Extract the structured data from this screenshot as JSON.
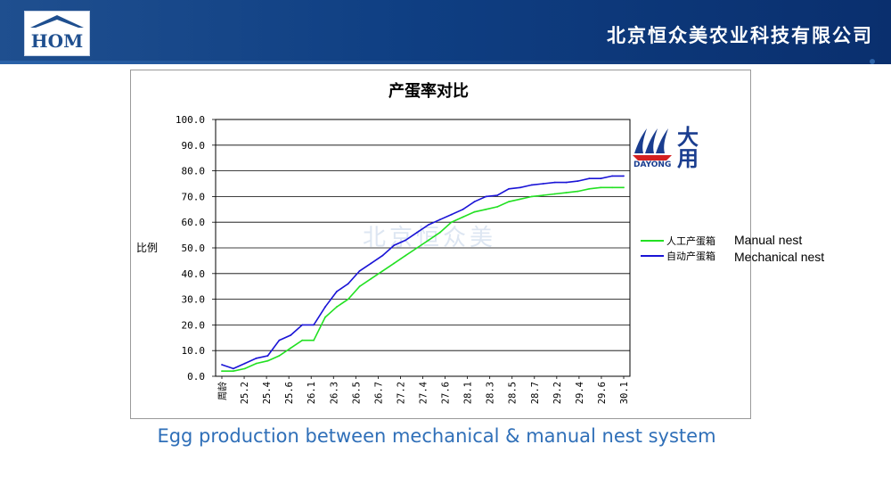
{
  "header": {
    "logo_text": "HOM",
    "company_name": "北京恒众美农业科技有限公司"
  },
  "watermark": "北京恒众美",
  "partner_logo": {
    "name_en": "DAYONG",
    "name_cn": "大用"
  },
  "legend_english": [
    "Manual nest",
    "Mechanical nest"
  ],
  "caption": "Egg production between mechanical & manual nest system",
  "colors": {
    "header": "#0f3f83",
    "manual": "#22e022",
    "mechanical": "#1a14d6",
    "caption": "#2f6fb8"
  },
  "chart_data": {
    "type": "line",
    "title": "产蛋率对比",
    "ylabel": "比例",
    "xlabel": "",
    "ylim": [
      0,
      100
    ],
    "yticks": [
      "100.0",
      "90.0",
      "80.0",
      "70.0",
      "60.0",
      "50.0",
      "40.0",
      "30.0",
      "20.0",
      "10.0",
      "0.0"
    ],
    "x_tick_labels": [
      "周龄",
      "25.2",
      "25.4",
      "25.6",
      "26.1",
      "26.3",
      "26.5",
      "26.7",
      "27.2",
      "27.4",
      "27.6",
      "28.1",
      "28.3",
      "28.5",
      "28.7",
      "29.2",
      "29.4",
      "29.6",
      "30.1"
    ],
    "grid": true,
    "legend_position": "right",
    "series": [
      {
        "name": "人工产蛋箱",
        "color": "#22e022",
        "values": [
          2,
          2,
          3,
          5,
          6,
          8,
          11,
          14,
          14,
          23,
          27,
          30,
          35,
          38,
          41,
          44,
          47,
          50,
          53,
          56,
          60,
          62,
          64,
          65,
          66,
          68,
          69,
          70,
          70.5,
          71,
          71.5,
          72,
          73,
          73.5,
          73.5,
          73.5
        ]
      },
      {
        "name": "自动产蛋箱",
        "color": "#1a14d6",
        "values": [
          4.5,
          3,
          5,
          7,
          8,
          14,
          16,
          20,
          20,
          27,
          33,
          36,
          41,
          44,
          47,
          51,
          53,
          56,
          59,
          61,
          63,
          65,
          68,
          70,
          70.5,
          73,
          73.5,
          74.5,
          75,
          75.5,
          75.5,
          76,
          77,
          77,
          78,
          78
        ]
      }
    ]
  }
}
